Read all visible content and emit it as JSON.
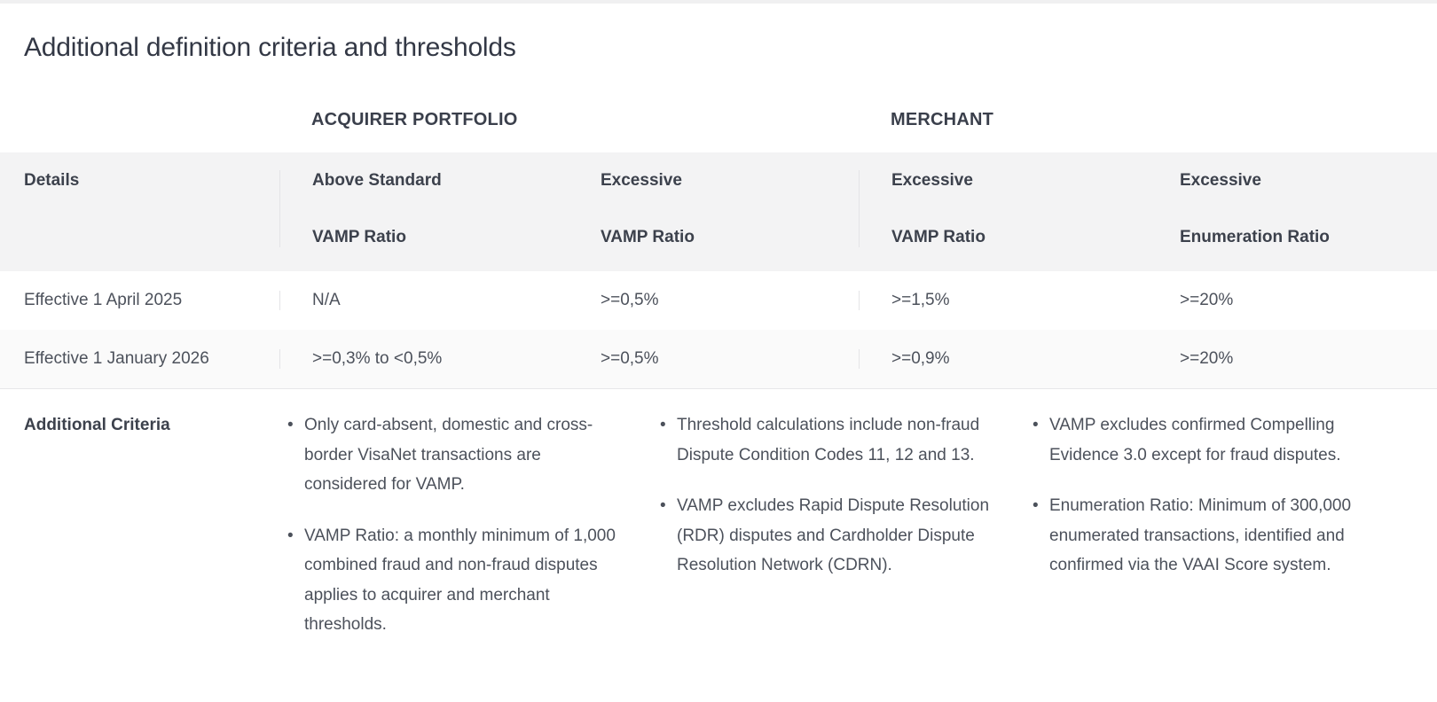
{
  "page": {
    "title": "Additional definition criteria and thresholds"
  },
  "table": {
    "group_headers": {
      "acquirer": "ACQUIRER PORTFOLIO",
      "merchant": "MERCHANT"
    },
    "header": {
      "details_label": "Details",
      "columns": [
        {
          "line1": "Above Standard",
          "line2": "VAMP Ratio"
        },
        {
          "line1": "Excessive",
          "line2": "VAMP Ratio"
        },
        {
          "line1": "Excessive",
          "line2": "VAMP Ratio"
        },
        {
          "line1": "Excessive",
          "line2": "Enumeration Ratio"
        }
      ]
    },
    "rows": [
      {
        "label": "Effective 1 April 2025",
        "values": [
          "N/A",
          ">=0,5%",
          ">=1,5%",
          ">=20%"
        ]
      },
      {
        "label": "Effective 1 January 2026",
        "values": [
          ">=0,3% to <0,5%",
          ">=0,5%",
          ">=0,9%",
          ">=20%"
        ]
      }
    ]
  },
  "additional_criteria": {
    "label": "Additional Criteria",
    "columns": [
      {
        "bullets": [
          "Only card-absent, domestic and cross-border VisaNet transactions are considered for VAMP.",
          "VAMP Ratio: a monthly minimum of 1,000 combined fraud and non-fraud disputes applies to acquirer and merchant thresholds."
        ]
      },
      {
        "bullets": [
          "Threshold calculations include non-fraud Dispute Condition Codes 11, 12 and 13.",
          "VAMP excludes Rapid Dispute Resolution (RDR) disputes and Cardholder Dispute Resolution Network (CDRN)."
        ]
      },
      {
        "bullets": [
          "VAMP excludes confirmed Compelling Evidence 3.0 except for fraud disputes.",
          "Enumeration Ratio: Minimum of 300,000 enumerated transactions, identified and confirmed via the VAAI Score system."
        ]
      }
    ]
  },
  "colors": {
    "heading_text": "#333845",
    "body_text": "#4c515b",
    "header_band_bg": "#f3f3f4",
    "alt_row_bg": "#fafafa",
    "border": "#e7e7e9",
    "top_strip": "#f0f0f1"
  }
}
